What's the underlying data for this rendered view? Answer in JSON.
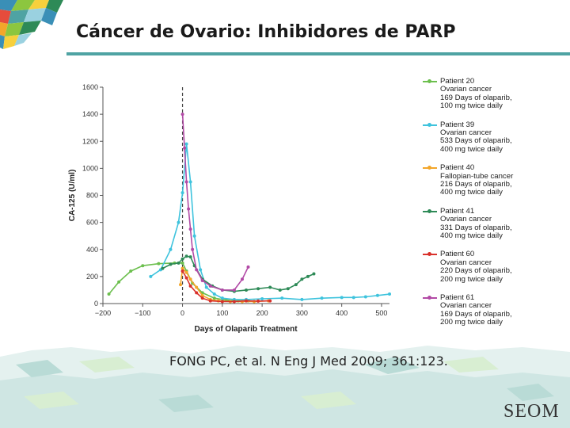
{
  "title": "Cáncer de Ovario: Inhibidores de PARP",
  "citation": "FONG PC, et al. N Eng J Med 2009; 361:123.",
  "logo_text": "SEOM",
  "colors": {
    "accent_rule": "#4fa3a3"
  },
  "legend": [
    {
      "color": "#6cbf4e",
      "lines": [
        "Patient 20",
        "Ovarian cancer",
        "169 Days of olaparib,",
        "100 mg twice daily"
      ]
    },
    {
      "color": "#3ec3dd",
      "lines": [
        "Patient 39",
        "Ovarian cancer",
        "533 Days of olaparib,",
        "400 mg twice daily"
      ]
    },
    {
      "color": "#f3a62a",
      "lines": [
        "Patient 40",
        "Fallopian-tube cancer",
        "216 Days of olaparib,",
        "400 mg twice daily"
      ]
    },
    {
      "color": "#2e8a57",
      "lines": [
        "Patient 41",
        "Ovarian cancer",
        "331 Days of olaparib,",
        "400 mg twice daily"
      ]
    },
    {
      "color": "#d9312b",
      "lines": [
        "Patient 60",
        "Ovarian cancer",
        "220 Days of olaparib,",
        "200 mg twice daily"
      ]
    },
    {
      "color": "#b24aa6",
      "lines": [
        "Patient 61",
        "Ovarian cancer",
        "169 Days of olaparib,",
        "200 mg twice daily"
      ]
    }
  ],
  "chart_data": {
    "type": "line",
    "title": "",
    "xlabel": "Days of Olaparib Treatment",
    "ylabel": "CA-125 (U/ml)",
    "xlim": [
      -200,
      520
    ],
    "ylim": [
      0,
      1600
    ],
    "xticks": [
      -200,
      -100,
      0,
      100,
      200,
      300,
      400,
      500
    ],
    "xtick_labels": [
      "−200",
      "−100",
      "0",
      "100",
      "200",
      "300",
      "400",
      "500"
    ],
    "yticks": [
      0,
      200,
      400,
      600,
      800,
      1000,
      1200,
      1400,
      1600
    ],
    "ytick_labels": [
      "0",
      "200",
      "400",
      "600",
      "800",
      "1000",
      "1200",
      "1400",
      "1600"
    ],
    "treatment_start_line": 0,
    "grid": false,
    "legend_position": "right",
    "series": [
      {
        "name": "Patient 20",
        "color": "#6cbf4e",
        "x": [
          -185,
          -160,
          -130,
          -100,
          -60,
          -20,
          0,
          10,
          25,
          50,
          80,
          110,
          140,
          165
        ],
        "y": [
          70,
          160,
          240,
          280,
          295,
          300,
          300,
          240,
          150,
          80,
          40,
          25,
          20,
          20
        ]
      },
      {
        "name": "Patient 39",
        "color": "#3ec3dd",
        "x": [
          -80,
          -55,
          -30,
          -10,
          0,
          10,
          20,
          30,
          45,
          60,
          80,
          100,
          130,
          160,
          200,
          250,
          300,
          350,
          400,
          430,
          460,
          490,
          520
        ],
        "y": [
          200,
          250,
          400,
          600,
          820,
          1180,
          900,
          500,
          250,
          120,
          70,
          40,
          30,
          30,
          35,
          40,
          30,
          40,
          45,
          45,
          50,
          60,
          70
        ]
      },
      {
        "name": "Patient 40",
        "color": "#f3a62a",
        "x": [
          -5,
          0,
          10,
          20,
          35,
          50,
          70,
          90,
          120,
          150,
          180,
          216
        ],
        "y": [
          140,
          260,
          230,
          180,
          120,
          60,
          30,
          20,
          15,
          15,
          15,
          20
        ]
      },
      {
        "name": "Patient 41",
        "color": "#2e8a57",
        "x": [
          -50,
          -30,
          -10,
          0,
          10,
          20,
          30,
          50,
          75,
          100,
          130,
          160,
          190,
          220,
          245,
          265,
          285,
          300,
          315,
          330
        ],
        "y": [
          260,
          290,
          300,
          330,
          350,
          345,
          280,
          180,
          130,
          100,
          90,
          100,
          110,
          120,
          100,
          110,
          140,
          180,
          200,
          220
        ]
      },
      {
        "name": "Patient 60",
        "color": "#d9312b",
        "x": [
          0,
          10,
          20,
          35,
          50,
          70,
          100,
          130,
          160,
          190,
          220
        ],
        "y": [
          240,
          190,
          130,
          80,
          40,
          20,
          15,
          15,
          20,
          18,
          20
        ]
      },
      {
        "name": "Patient 61",
        "color": "#b24aa6",
        "x": [
          0,
          5,
          10,
          15,
          20,
          25,
          35,
          50,
          70,
          100,
          130,
          150,
          165
        ],
        "y": [
          1400,
          1150,
          900,
          700,
          550,
          400,
          250,
          170,
          130,
          100,
          100,
          180,
          270
        ]
      }
    ]
  }
}
